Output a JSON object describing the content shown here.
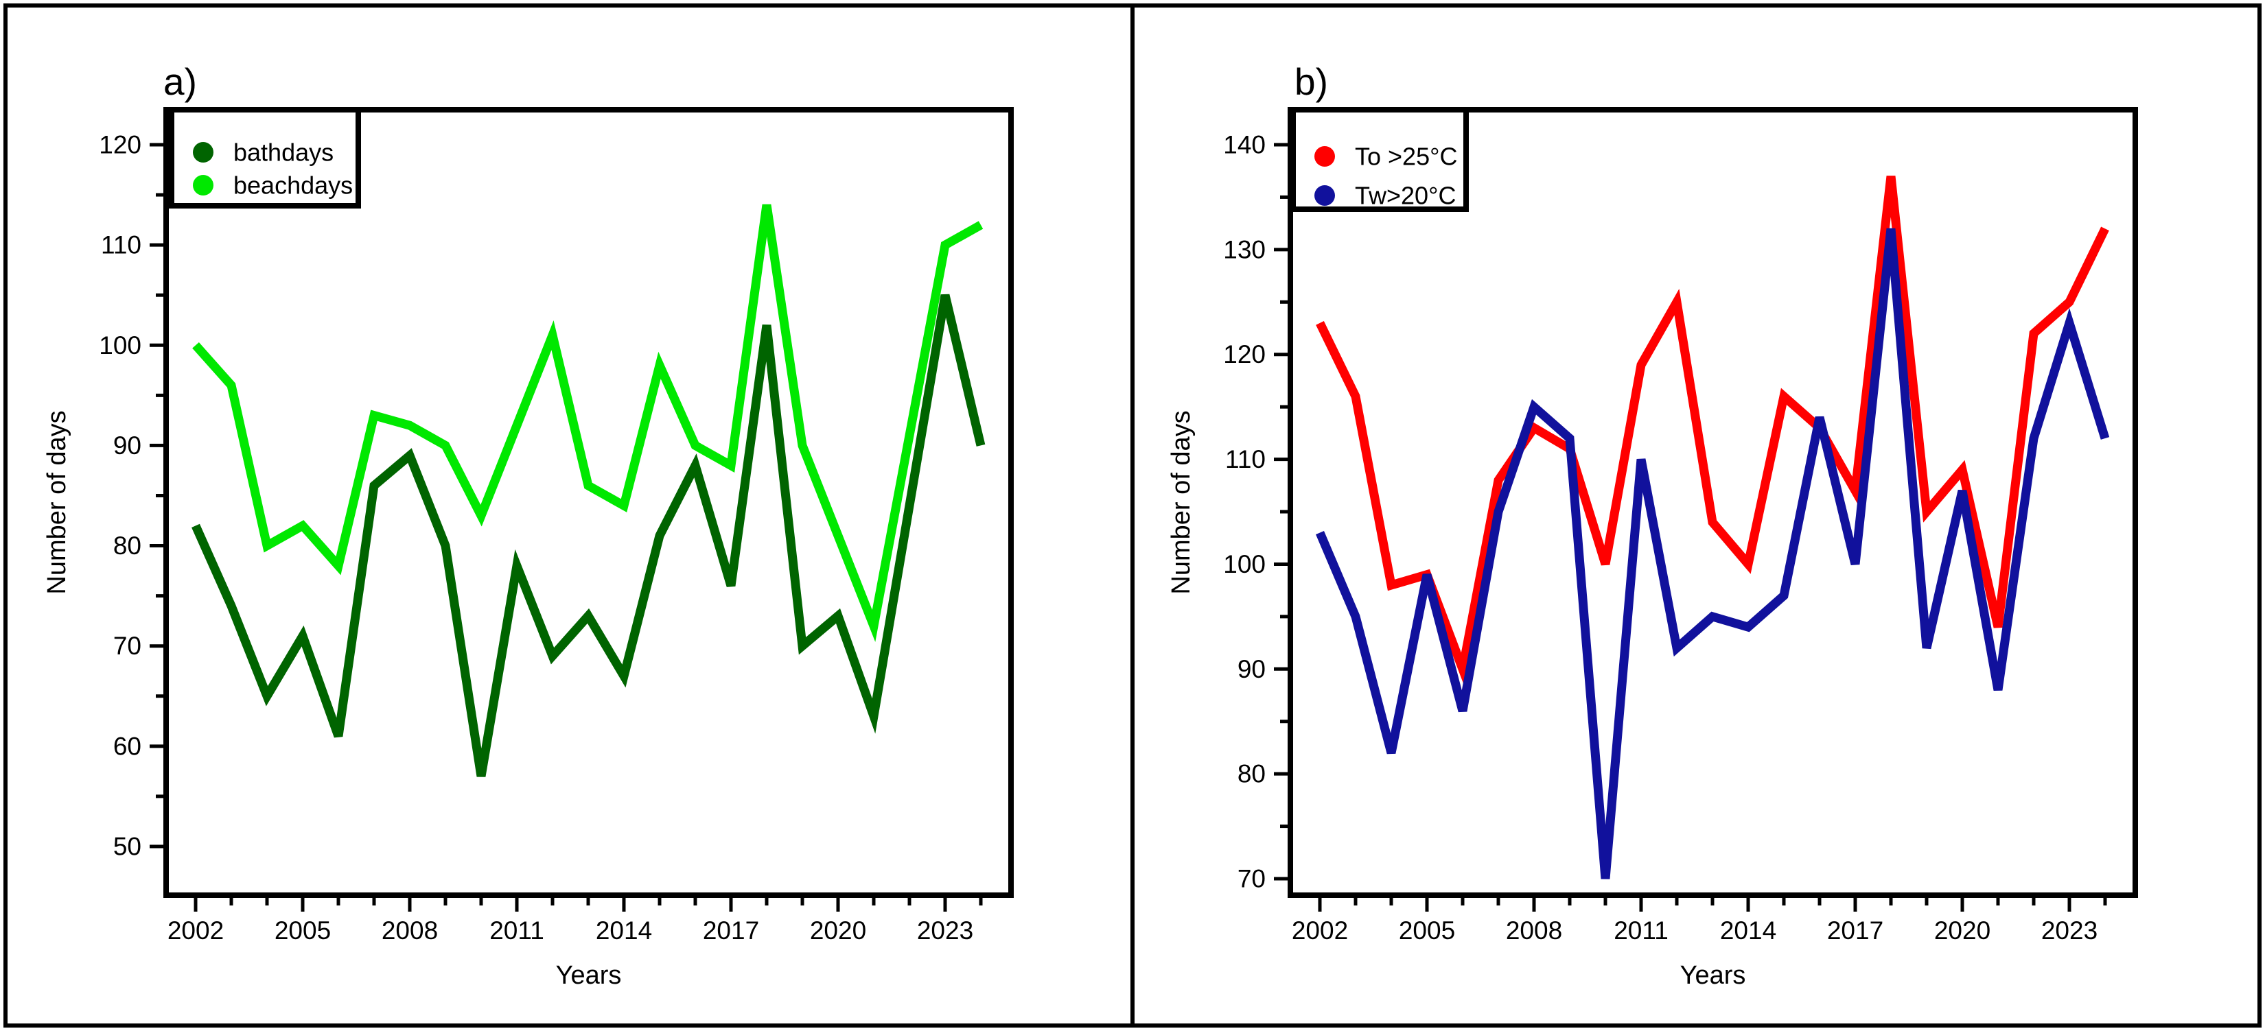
{
  "figure": {
    "background": "#ffffff",
    "border_color": "#000000",
    "panels": [
      {
        "letter": "a)"
      },
      {
        "letter": "b)"
      }
    ]
  },
  "chart_data": [
    {
      "type": "line",
      "panel_label": "a)",
      "title": "",
      "xlabel": "Years",
      "ylabel": "Number of days",
      "x": [
        2002,
        2003,
        2004,
        2005,
        2006,
        2007,
        2008,
        2009,
        2010,
        2011,
        2012,
        2013,
        2014,
        2015,
        2016,
        2017,
        2018,
        2019,
        2020,
        2021,
        2022,
        2023,
        2024
      ],
      "xticks_labeled": [
        2002,
        2005,
        2008,
        2011,
        2014,
        2017,
        2020,
        2023
      ],
      "yticks": [
        50,
        60,
        70,
        80,
        90,
        100,
        110,
        120
      ],
      "yticks_minor": [
        55,
        65,
        75,
        85,
        95,
        105,
        115
      ],
      "ylim": [
        46,
        123
      ],
      "grid": false,
      "legend_position": "top-left",
      "series": [
        {
          "name": "bathdays",
          "color": "#006400",
          "values": [
            82,
            74,
            65,
            71,
            61,
            86,
            89,
            80,
            57,
            78,
            69,
            73,
            67,
            81,
            88,
            76,
            102,
            70,
            73,
            63,
            84,
            105,
            90
          ]
        },
        {
          "name": "beachdays",
          "color": "#00E800",
          "values": [
            100,
            96,
            80,
            82,
            78,
            93,
            92,
            90,
            83,
            92,
            101,
            86,
            84,
            98,
            90,
            88,
            114,
            90,
            81,
            72,
            91,
            110,
            112
          ]
        }
      ]
    },
    {
      "type": "line",
      "panel_label": "b)",
      "title": "",
      "xlabel": "Years",
      "ylabel": "Number of days",
      "x": [
        2002,
        2003,
        2004,
        2005,
        2006,
        2007,
        2008,
        2009,
        2010,
        2011,
        2012,
        2013,
        2014,
        2015,
        2016,
        2017,
        2018,
        2019,
        2020,
        2021,
        2022,
        2023,
        2024
      ],
      "xticks_labeled": [
        2002,
        2005,
        2008,
        2011,
        2014,
        2017,
        2020,
        2023
      ],
      "yticks": [
        70,
        80,
        90,
        100,
        110,
        120,
        130,
        140
      ],
      "yticks_minor": [
        75,
        85,
        95,
        105,
        115,
        125,
        135
      ],
      "ylim": [
        68,
        143
      ],
      "grid": false,
      "legend_position": "top-left",
      "series": [
        {
          "name": "To >25°C",
          "color": "#FF0000",
          "values": [
            123,
            116,
            98,
            99,
            90,
            108,
            113,
            111,
            100,
            119,
            125,
            104,
            100,
            116,
            113,
            107,
            137,
            105,
            109,
            94,
            122,
            125,
            132
          ]
        },
        {
          "name": "Tw>20°C",
          "color": "#11119C",
          "values": [
            103,
            95,
            82,
            99,
            86,
            105,
            115,
            112,
            70,
            110,
            92,
            95,
            94,
            97,
            114,
            100,
            132,
            92,
            107,
            88,
            112,
            123,
            112
          ]
        }
      ]
    }
  ]
}
